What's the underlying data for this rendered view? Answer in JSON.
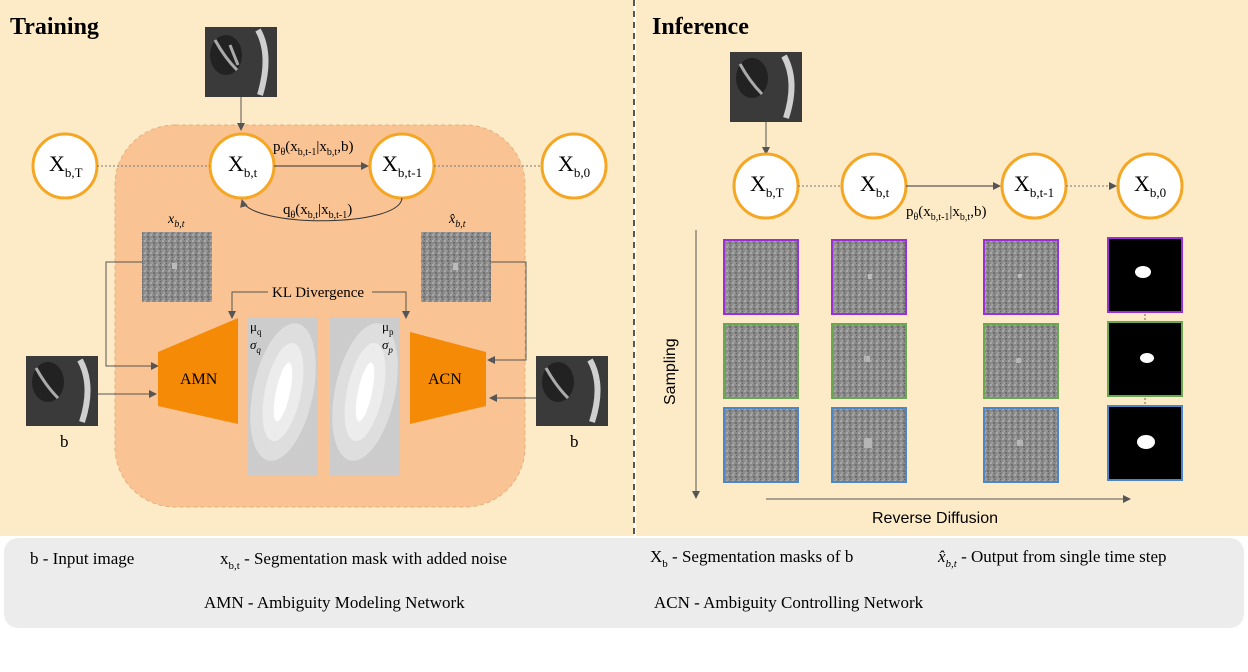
{
  "training": {
    "title": "Training",
    "nodes": {
      "xbT": {
        "main": "X",
        "sub": "b,T"
      },
      "xbt": {
        "main": "X",
        "sub": "b,t"
      },
      "xbt1": {
        "main": "X",
        "sub": "b,t-1"
      },
      "xb0": {
        "main": "X",
        "sub": "b,0"
      }
    },
    "p_theta": {
      "p": "p",
      "theta": "θ",
      "open": "(x",
      "s1": "b,t-1",
      "bar": "|x",
      "s2": "b,t",
      "close": ",b)"
    },
    "q_theta": {
      "q": "q",
      "theta": "θ",
      "open": "(x",
      "s1": "b,t",
      "bar": "|x",
      "s2": "b,t-1",
      "close": ")"
    },
    "xbt_label": {
      "main": "x",
      "sub": "b,t"
    },
    "xhat_label": {
      "main": "x̂",
      "sub": "b,t"
    },
    "kl": "KL Divergence",
    "mu_q": {
      "main": "μ",
      "sub": "q"
    },
    "sigma_q": {
      "main": "σ",
      "sub": "q"
    },
    "mu_p": {
      "main": "μ",
      "sub": "p"
    },
    "sigma_p": {
      "main": "σ",
      "sub": "p"
    },
    "amn": "AMN",
    "acn": "ACN",
    "b_left": "b",
    "b_right": "b"
  },
  "inference": {
    "title": "Inference",
    "nodes": {
      "xbT": {
        "main": "X",
        "sub": "b,T"
      },
      "xbt": {
        "main": "X",
        "sub": "b,t"
      },
      "xbt1": {
        "main": "X",
        "sub": "b,t-1"
      },
      "xb0": {
        "main": "X",
        "sub": "b,0"
      }
    },
    "p_theta": {
      "p": "p",
      "theta": "θ",
      "open": "(x",
      "s1": "b,t-1",
      "bar": "|x",
      "s2": "b,t",
      "close": ",b)"
    },
    "sampling": "Sampling",
    "reverse": "Reverse Diffusion",
    "row_colors": [
      "#9b30d9",
      "#6aa84f",
      "#4a86c8"
    ]
  },
  "legend": {
    "b": {
      "symbol": "b",
      "text": " - Input image"
    },
    "x": {
      "main": "x",
      "sub": "b,t",
      "text": " - Segmentation mask with added noise"
    },
    "X": {
      "main": "X",
      "sub": "b",
      "text": " - Segmentation masks of b"
    },
    "xhat": {
      "main": "x̂",
      "sub": "b,t",
      "text": " - Output from single time step"
    },
    "amn": "AMN - Ambiguity Modeling Network",
    "acn": "ACN - Ambiguity Controlling  Network"
  },
  "colors": {
    "panel": "#fdebc8",
    "inner": "#f9c394",
    "node_stroke": "#f5a623",
    "network": "#f58a07",
    "legend_bg": "#ececec"
  }
}
